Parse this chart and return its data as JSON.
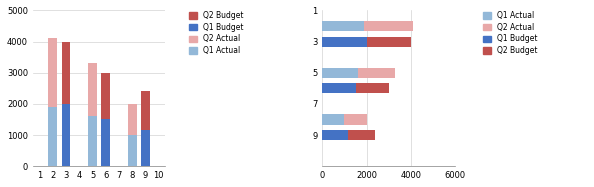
{
  "left": {
    "bars": {
      "2": {
        "q1_actual": 1900,
        "q2_actual": 2200
      },
      "3": {
        "q1_budget": 2000,
        "q2_budget": 2000
      },
      "5": {
        "q1_actual": 1600,
        "q2_actual": 1700
      },
      "6": {
        "q1_budget": 1500,
        "q2_budget": 1500
      },
      "8": {
        "q1_actual": 1000,
        "q2_actual": 1000
      },
      "9": {
        "q1_budget": 1150,
        "q2_budget": 1250
      }
    },
    "ylim": [
      0,
      5000
    ],
    "yticks": [
      0,
      1000,
      2000,
      3000,
      4000,
      5000
    ],
    "xlim": [
      0.5,
      10.5
    ],
    "xticks": [
      1,
      2,
      3,
      4,
      5,
      6,
      7,
      8,
      9,
      10
    ]
  },
  "right": {
    "bars": {
      "2": {
        "q1_actual": 1900,
        "q2_actual": 2200
      },
      "3": {
        "q1_budget": 2000,
        "q2_budget": 2000
      },
      "5": {
        "q1_actual": 1600,
        "q2_actual": 1700
      },
      "6": {
        "q1_budget": 1500,
        "q2_budget": 1500
      },
      "8": {
        "q1_actual": 1000,
        "q2_actual": 1000
      },
      "9": {
        "q1_budget": 1150,
        "q2_budget": 1250
      }
    },
    "xlim": [
      0,
      6000
    ],
    "xticks": [
      0,
      2000,
      4000,
      6000
    ],
    "ylim": [
      0.0,
      10.0
    ],
    "yticks": [
      1,
      3,
      5,
      7,
      9
    ],
    "yticklabels": [
      "9",
      "7",
      "5",
      "3",
      "1"
    ]
  },
  "colors": {
    "q1_actual": "#93b8d8",
    "q2_actual": "#e8a8a8",
    "q1_budget": "#4472c4",
    "q2_budget": "#c0504d"
  },
  "left_legend_labels": [
    "Q2 Budget",
    "Q1 Budget",
    "Q2 Actual",
    "Q1 Actual"
  ],
  "left_legend_colors": [
    "#c0504d",
    "#4472c4",
    "#e8a8a8",
    "#93b8d8"
  ],
  "right_legend_labels": [
    "Q1 Actual",
    "Q2 Actual",
    "Q1 Budget",
    "Q2 Budget"
  ],
  "right_legend_colors": [
    "#93b8d8",
    "#e8a8a8",
    "#4472c4",
    "#c0504d"
  ],
  "background_color": "#ffffff",
  "bar_width": 0.65,
  "bar_height": 0.65
}
